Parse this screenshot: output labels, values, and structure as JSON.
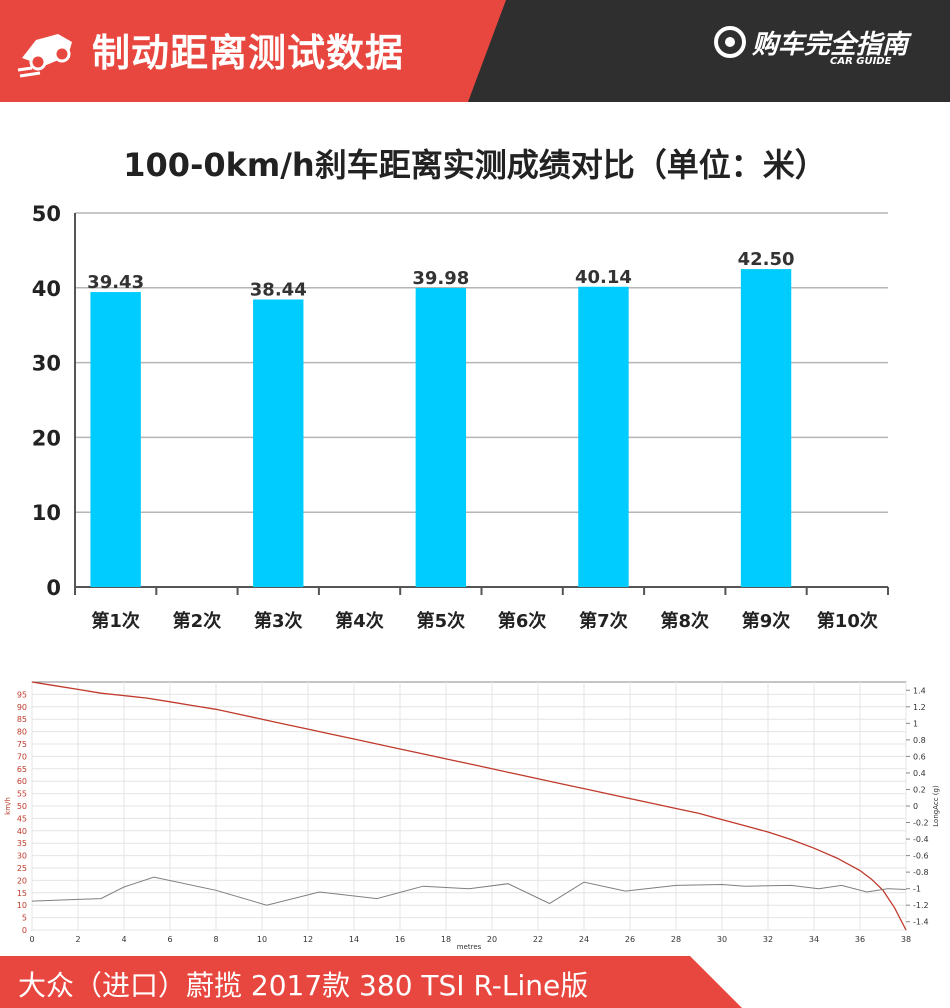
{
  "header": {
    "title": "制动距离测试数据",
    "brand_name": "购车完全指南",
    "brand_sub": "CAR GUIDE",
    "icon": "car-braking-icon",
    "brand_icon": "brand-logo-icon"
  },
  "colors": {
    "header_red": "#e8473f",
    "header_dark": "#2f2f2f",
    "bar": "#00ccff",
    "speed_line": "#c0392b",
    "accel_line": "#7f7f7f"
  },
  "footer": {
    "model": "大众（进口）蔚揽 2017款 380 TSI R-Line版"
  },
  "chart_data": [
    {
      "type": "bar",
      "title": "100-0km/h刹车距离实测成绩对比（单位：米）",
      "categories": [
        "第1次",
        "第2次",
        "第3次",
        "第4次",
        "第5次",
        "第6次",
        "第7次",
        "第8次",
        "第9次",
        "第10次"
      ],
      "series": [
        {
          "values": [
            39.43,
            null,
            38.44,
            null,
            39.98,
            null,
            40.14,
            null,
            42.5,
            null
          ]
        }
      ],
      "data_labels": [
        "39.43",
        "",
        "38.44",
        "",
        "39.98",
        "",
        "40.14",
        "",
        "42.50",
        ""
      ],
      "ylim": [
        0,
        50
      ],
      "yticks": [
        0,
        10,
        20,
        30,
        40,
        50
      ],
      "grid": true,
      "legend": "none"
    },
    {
      "type": "line",
      "xlabel": "metres",
      "ylabel": "km/h",
      "ylabel_right": "LongAcc (g)",
      "xlim": [
        0,
        38
      ],
      "xticks": [
        0,
        2,
        4,
        6,
        8,
        10,
        12,
        14,
        16,
        18,
        20,
        22,
        24,
        26,
        28,
        30,
        32,
        34,
        36,
        38
      ],
      "ylim": [
        0,
        100
      ],
      "yticks": [
        0,
        5,
        10,
        15,
        20,
        25,
        30,
        35,
        40,
        45,
        50,
        55,
        60,
        65,
        70,
        75,
        80,
        85,
        90,
        95
      ],
      "ylim_right": [
        -1.5,
        1.5
      ],
      "yticks_right": [
        "1.4",
        "1.2",
        "1",
        "0.8",
        "0.6",
        "0.4",
        "0.2",
        "0",
        "-0.2",
        "-0.4",
        "-0.6",
        "-0.8",
        "-1",
        "-1.2",
        "-1.4"
      ],
      "grid": true,
      "series": [
        {
          "axis": "left",
          "x": [
            0,
            1,
            2,
            3,
            4,
            5,
            6,
            7,
            8,
            9,
            10,
            11,
            12,
            13,
            14,
            15,
            16,
            17,
            18,
            19,
            20,
            21,
            22,
            23,
            24,
            25,
            26,
            27,
            28,
            29,
            30,
            31,
            32,
            33,
            34,
            35,
            36,
            36.5,
            37,
            37.5,
            38
          ],
          "values": [
            100,
            98.5,
            97,
            95.5,
            94.5,
            93.5,
            92,
            90.5,
            89,
            87,
            85,
            83,
            81,
            79,
            77,
            75,
            73,
            71,
            69,
            67,
            65,
            63,
            61,
            59,
            57,
            55,
            53,
            51,
            49,
            47,
            44.5,
            42,
            39.5,
            36.5,
            33,
            29,
            24,
            20.5,
            16,
            9,
            0
          ]
        },
        {
          "axis": "right",
          "x": [
            0,
            1,
            2,
            3,
            4,
            5.3,
            8,
            10.2,
            12.5,
            15,
            17,
            19,
            20.7,
            22.5,
            24,
            25.8,
            28,
            30,
            31,
            33,
            34.2,
            35.2,
            36.3,
            37.2,
            38
          ],
          "values": [
            -1.15,
            -1.14,
            -1.13,
            -1.12,
            -0.98,
            -0.86,
            -1.02,
            -1.2,
            -1.04,
            -1.12,
            -0.97,
            -1.0,
            -0.94,
            -1.18,
            -0.92,
            -1.03,
            -0.96,
            -0.95,
            -0.97,
            -0.96,
            -1.0,
            -0.96,
            -1.04,
            -1.0,
            -1.01
          ]
        }
      ]
    }
  ]
}
